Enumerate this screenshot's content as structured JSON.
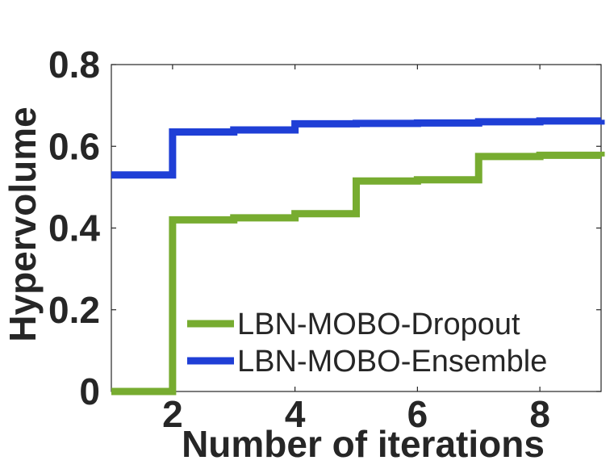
{
  "chart_data": {
    "type": "line",
    "step": true,
    "xlabel": "Number of iterations",
    "ylabel": "Hypervolume",
    "xlim": [
      1,
      9
    ],
    "ylim": [
      0,
      0.8
    ],
    "xticks": [
      2,
      4,
      6,
      8
    ],
    "yticks": [
      0,
      0.2,
      0.4,
      0.6,
      0.8
    ],
    "ytick_labels": [
      "0",
      "0.2",
      "0.4",
      "0.6",
      "0.8"
    ],
    "xtick_labels": [
      "2",
      "4",
      "6",
      "8"
    ],
    "grid": false,
    "legend_position": "bottom-right",
    "series": [
      {
        "name": "LBN-MOBO-Dropout",
        "color": "#77ac30",
        "x": [
          1,
          2,
          3,
          4,
          5,
          6,
          7,
          8,
          9
        ],
        "y": [
          0.0,
          0.42,
          0.425,
          0.435,
          0.515,
          0.518,
          0.575,
          0.578,
          0.575
        ]
      },
      {
        "name": "LBN-MOBO-Ensemble",
        "color": "#1f3fd6",
        "x": [
          1,
          2,
          3,
          4,
          5,
          6,
          7,
          8,
          9
        ],
        "y": [
          0.53,
          0.635,
          0.64,
          0.655,
          0.656,
          0.657,
          0.66,
          0.662,
          0.665
        ]
      }
    ]
  }
}
